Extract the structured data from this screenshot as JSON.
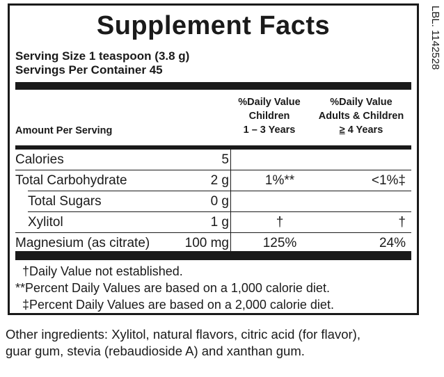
{
  "title": "Supplement Facts",
  "serving_size": "Serving Size 1 teaspoon (3.8 g)",
  "servings_per_container": "Servings Per Container 45",
  "headers": {
    "amount_per_serving": "Amount Per Serving",
    "children_line1": "%Daily Value",
    "children_line2": "Children",
    "children_line3": "1 – 3 Years",
    "adults_line1": "%Daily Value",
    "adults_line2": "Adults & Children",
    "adults_line3_symbol": "≥",
    "adults_line3_rest": " 4 Years"
  },
  "rows": [
    {
      "name": "Calories",
      "amount": "5",
      "dv_children": "",
      "dv_adults": ""
    },
    {
      "name": "Total Carbohydrate",
      "amount": "2 g",
      "dv_children": "1%**",
      "dv_adults": "<1%‡"
    },
    {
      "name": "Total Sugars",
      "amount": "0 g",
      "dv_children": "",
      "dv_adults": ""
    },
    {
      "name": "Xylitol",
      "amount": "1 g",
      "dv_children": "†",
      "dv_adults": "†"
    },
    {
      "name": "Magnesium (as citrate)",
      "amount": "100 mg",
      "dv_children": "125%",
      "dv_adults": "24%"
    }
  ],
  "footnotes": [
    "†Daily Value not established.",
    "**Percent Daily Values are based on a 1,000 calorie diet.",
    "‡Percent Daily Values are based on a 2,000 calorie diet."
  ],
  "other_ingredients_line1": "Other ingredients: Xylitol, natural flavors, citric acid (for flavor),",
  "other_ingredients_line2": "guar gum, stevia (rebaudioside A) and xanthan gum.",
  "label_code": "LBL. 1142528"
}
